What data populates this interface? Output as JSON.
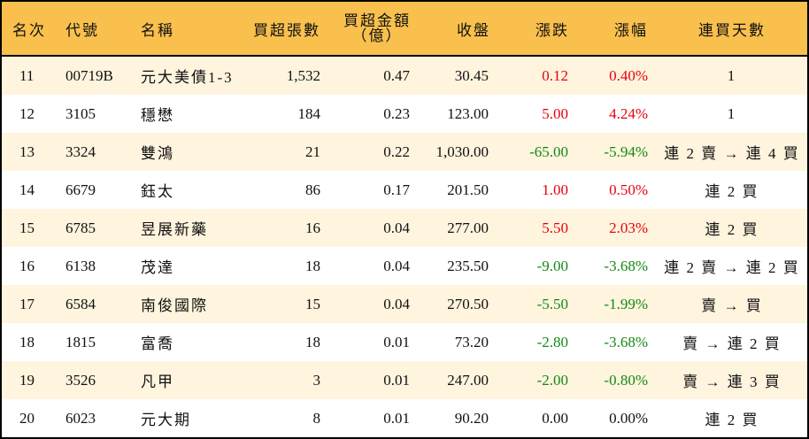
{
  "table": {
    "colors": {
      "header_bg": "#F9C04E",
      "row_odd_bg": "#FFF4DE",
      "row_even_bg": "#FFFFFF",
      "up": "#E8000B",
      "down": "#138A13",
      "border": "#000000"
    },
    "headers": {
      "rank": "名次",
      "code": "代號",
      "name": "名稱",
      "net_buy_lots": "買超張數",
      "net_buy_amount_line1": "買超金額",
      "net_buy_amount_line2": "（億）",
      "close": "收盤",
      "change": "漲跌",
      "change_pct": "漲幅",
      "consecutive_days": "連買天數"
    },
    "rows": [
      {
        "rank": "11",
        "code": "00719B",
        "name": "元大美債1-3",
        "net_buy_lots": "1,532",
        "net_buy_amount": "0.47",
        "close": "30.45",
        "change": "0.12",
        "change_pct": "0.40%",
        "direction": "up",
        "consecutive_days": "1"
      },
      {
        "rank": "12",
        "code": "3105",
        "name": "穩懋",
        "net_buy_lots": "184",
        "net_buy_amount": "0.23",
        "close": "123.00",
        "change": "5.00",
        "change_pct": "4.24%",
        "direction": "up",
        "consecutive_days": "1"
      },
      {
        "rank": "13",
        "code": "3324",
        "name": "雙鴻",
        "net_buy_lots": "21",
        "net_buy_amount": "0.22",
        "close": "1,030.00",
        "change": "-65.00",
        "change_pct": "-5.94%",
        "direction": "down",
        "consecutive_days": "連 2 賣 → 連 4 買"
      },
      {
        "rank": "14",
        "code": "6679",
        "name": "鈺太",
        "net_buy_lots": "86",
        "net_buy_amount": "0.17",
        "close": "201.50",
        "change": "1.00",
        "change_pct": "0.50%",
        "direction": "up",
        "consecutive_days": "連 2 買"
      },
      {
        "rank": "15",
        "code": "6785",
        "name": "昱展新藥",
        "net_buy_lots": "16",
        "net_buy_amount": "0.04",
        "close": "277.00",
        "change": "5.50",
        "change_pct": "2.03%",
        "direction": "up",
        "consecutive_days": "連 2 買"
      },
      {
        "rank": "16",
        "code": "6138",
        "name": "茂達",
        "net_buy_lots": "18",
        "net_buy_amount": "0.04",
        "close": "235.50",
        "change": "-9.00",
        "change_pct": "-3.68%",
        "direction": "down",
        "consecutive_days": "連 2 賣 → 連 2 買"
      },
      {
        "rank": "17",
        "code": "6584",
        "name": "南俊國際",
        "net_buy_lots": "15",
        "net_buy_amount": "0.04",
        "close": "270.50",
        "change": "-5.50",
        "change_pct": "-1.99%",
        "direction": "down",
        "consecutive_days": "賣 → 買"
      },
      {
        "rank": "18",
        "code": "1815",
        "name": "富喬",
        "net_buy_lots": "18",
        "net_buy_amount": "0.01",
        "close": "73.20",
        "change": "-2.80",
        "change_pct": "-3.68%",
        "direction": "down",
        "consecutive_days": "賣 → 連 2 買"
      },
      {
        "rank": "19",
        "code": "3526",
        "name": "凡甲",
        "net_buy_lots": "3",
        "net_buy_amount": "0.01",
        "close": "247.00",
        "change": "-2.00",
        "change_pct": "-0.80%",
        "direction": "down",
        "consecutive_days": "賣 → 連 3 買"
      },
      {
        "rank": "20",
        "code": "6023",
        "name": "元大期",
        "net_buy_lots": "8",
        "net_buy_amount": "0.01",
        "close": "90.20",
        "change": "0.00",
        "change_pct": "0.00%",
        "direction": "flat",
        "consecutive_days": "連 2 買"
      }
    ]
  }
}
